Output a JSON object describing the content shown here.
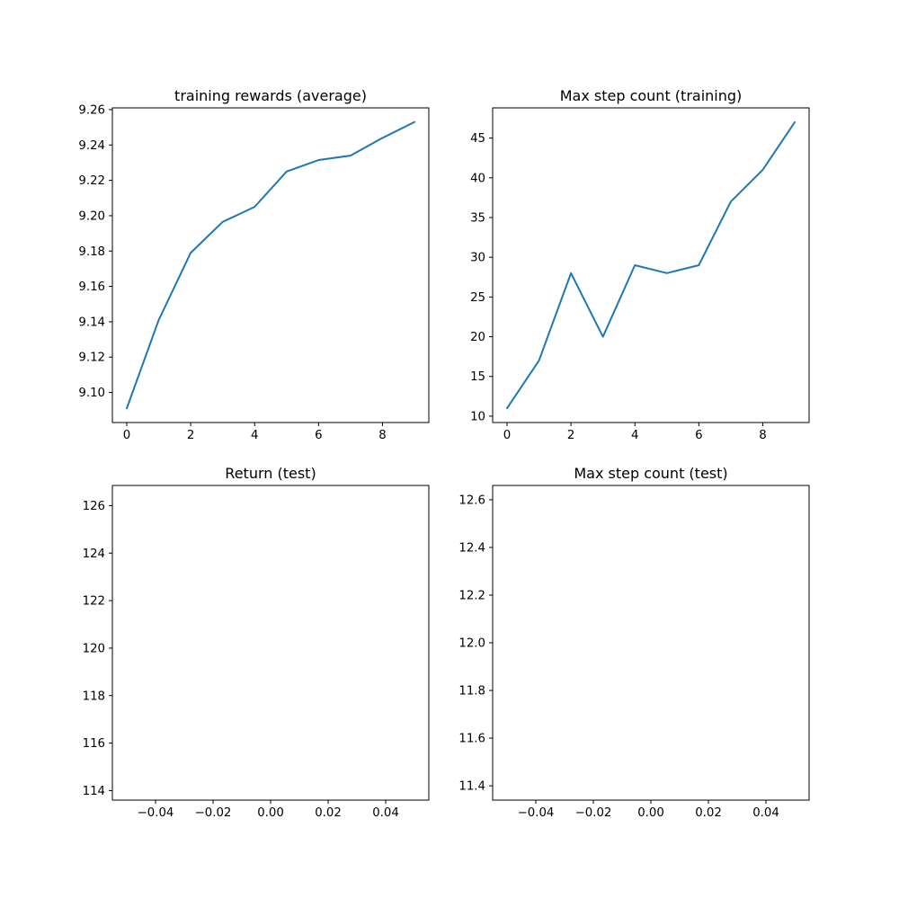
{
  "chart_data": [
    {
      "type": "line",
      "title": "training rewards (average)",
      "xlabel": "",
      "ylabel": "",
      "x": [
        0,
        1,
        2,
        3,
        4,
        5,
        6,
        7,
        8,
        9
      ],
      "series": [
        {
          "values": [
            9.091,
            9.141,
            9.179,
            9.1965,
            9.205,
            9.225,
            9.2315,
            9.234,
            9.244,
            9.253
          ]
        }
      ],
      "xlim": [
        -0.45,
        9.45
      ],
      "ylim": [
        9.083,
        9.261
      ],
      "xticks": [
        0,
        2,
        4,
        6,
        8
      ],
      "yticks": [
        9.1,
        9.12,
        9.14,
        9.16,
        9.18,
        9.2,
        9.22,
        9.24,
        9.26
      ],
      "xtick_labels": [
        "0",
        "2",
        "4",
        "6",
        "8"
      ],
      "ytick_labels": [
        "9.10",
        "9.12",
        "9.14",
        "9.16",
        "9.18",
        "9.20",
        "9.22",
        "9.24",
        "9.26"
      ],
      "grid": false
    },
    {
      "type": "line",
      "title": "Max step count (training)",
      "xlabel": "",
      "ylabel": "",
      "x": [
        0,
        1,
        2,
        3,
        4,
        5,
        6,
        7,
        8,
        9
      ],
      "series": [
        {
          "values": [
            11,
            17,
            28,
            20,
            29,
            28,
            29,
            37,
            41,
            47
          ]
        }
      ],
      "xlim": [
        -0.45,
        9.45
      ],
      "ylim": [
        9.2,
        48.8
      ],
      "xticks": [
        0,
        2,
        4,
        6,
        8
      ],
      "yticks": [
        10,
        15,
        20,
        25,
        30,
        35,
        40,
        45
      ],
      "xtick_labels": [
        "0",
        "2",
        "4",
        "6",
        "8"
      ],
      "ytick_labels": [
        "10",
        "15",
        "20",
        "25",
        "30",
        "35",
        "40",
        "45"
      ],
      "grid": false
    },
    {
      "type": "line",
      "title": "Return (test)",
      "xlabel": "",
      "ylabel": "",
      "x": [],
      "series": [
        {
          "values": []
        }
      ],
      "xlim": [
        -0.055,
        0.055
      ],
      "ylim": [
        113.6,
        126.85
      ],
      "xticks": [
        -0.04,
        -0.02,
        0.0,
        0.02,
        0.04
      ],
      "yticks": [
        114,
        116,
        118,
        120,
        122,
        124,
        126
      ],
      "xtick_labels": [
        "−0.04",
        "−0.02",
        "0.00",
        "0.02",
        "0.04"
      ],
      "ytick_labels": [
        "114",
        "116",
        "118",
        "120",
        "122",
        "124",
        "126"
      ],
      "grid": false
    },
    {
      "type": "line",
      "title": "Max step count (test)",
      "xlabel": "",
      "ylabel": "",
      "x": [],
      "series": [
        {
          "values": []
        }
      ],
      "xlim": [
        -0.055,
        0.055
      ],
      "ylim": [
        11.34,
        12.66
      ],
      "xticks": [
        -0.04,
        -0.02,
        0.0,
        0.02,
        0.04
      ],
      "yticks": [
        11.4,
        11.6,
        11.8,
        12.0,
        12.2,
        12.4,
        12.6
      ],
      "xtick_labels": [
        "−0.04",
        "−0.02",
        "0.00",
        "0.02",
        "0.04"
      ],
      "ytick_labels": [
        "11.4",
        "11.6",
        "11.8",
        "12.0",
        "12.2",
        "12.4",
        "12.6"
      ],
      "grid": false
    }
  ],
  "colors": {
    "line": "#1f77b4",
    "axes": "#000000",
    "background": "#ffffff"
  }
}
